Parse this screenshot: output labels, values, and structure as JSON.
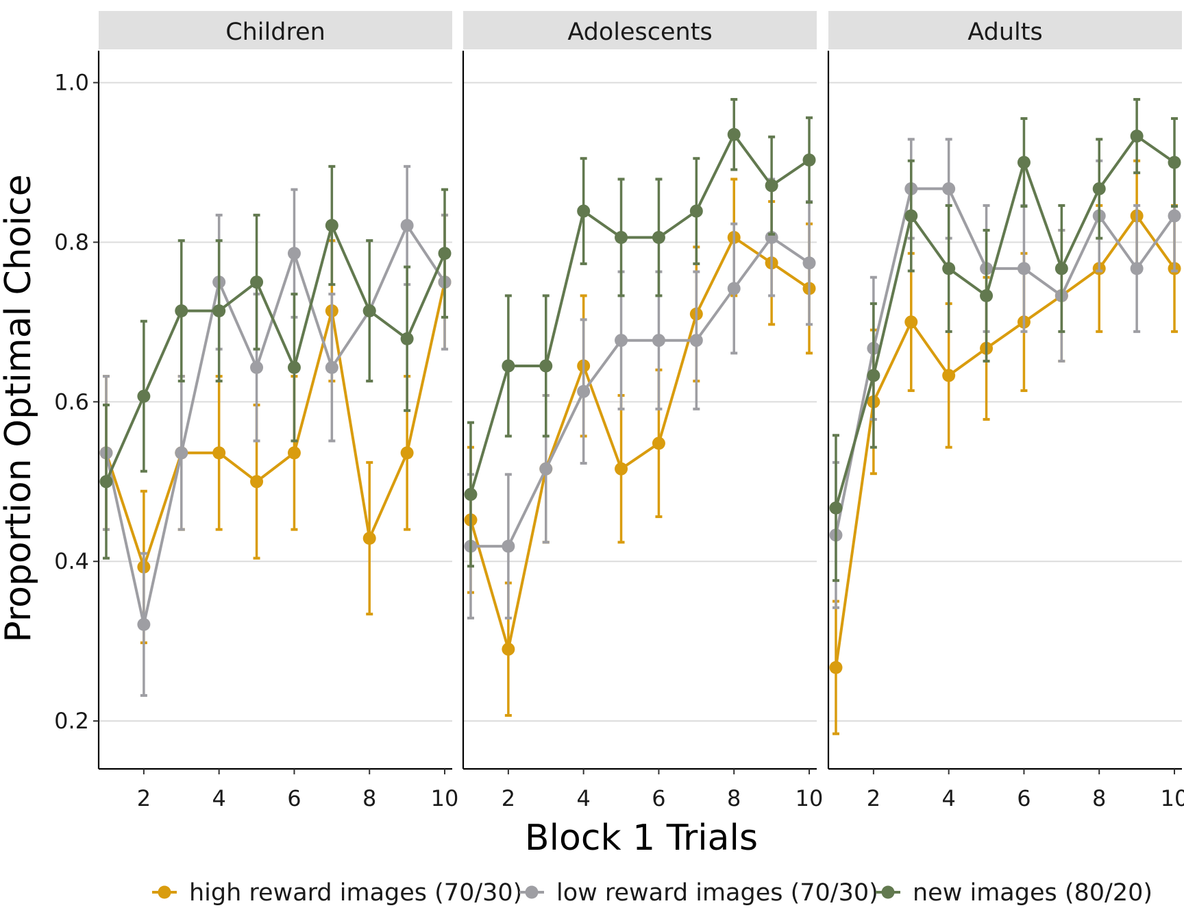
{
  "chart_data": {
    "type": "line",
    "facets": [
      "Children",
      "Adolescents",
      "Adults"
    ],
    "xlabel": "Block 1 Trials",
    "ylabel": "Proportion Optimal Choice",
    "xlim": [
      0.8,
      10.2
    ],
    "ylim": [
      0.14,
      1.04
    ],
    "x_ticks": [
      2,
      4,
      6,
      8,
      10
    ],
    "x_tick_labels": [
      "2",
      "4",
      "6",
      "8",
      "10"
    ],
    "y_ticks": [
      0.2,
      0.4,
      0.6,
      0.8,
      1.0
    ],
    "y_tick_labels": [
      "0.2",
      "0.4",
      "0.6",
      "0.8",
      "1.0"
    ],
    "grid": "horizontal major",
    "legend_position": "bottom",
    "x": [
      1,
      2,
      3,
      4,
      5,
      6,
      7,
      8,
      9,
      10
    ],
    "series": [
      {
        "name": "high reward images (70/30)",
        "color": "#d99c0e",
        "panels": [
          {
            "y": [
              0.536,
              0.393,
              0.536,
              0.536,
              0.5,
              0.536,
              0.714,
              0.429,
              0.536,
              0.75
            ],
            "ymin": [
              0.44,
              0.298,
              0.44,
              0.44,
              0.404,
              0.44,
              0.626,
              0.334,
              0.44,
              0.666
            ],
            "ymax": [
              0.632,
              0.488,
              0.632,
              0.632,
              0.596,
              0.632,
              0.802,
              0.524,
              0.632,
              0.834
            ]
          },
          {
            "y": [
              0.452,
              0.29,
              0.516,
              0.645,
              0.516,
              0.548,
              0.71,
              0.806,
              0.774,
              0.742
            ],
            "ymin": [
              0.361,
              0.207,
              0.424,
              0.557,
              0.424,
              0.456,
              0.626,
              0.733,
              0.697,
              0.661
            ],
            "ymax": [
              0.543,
              0.373,
              0.608,
              0.733,
              0.608,
              0.64,
              0.794,
              0.879,
              0.851,
              0.823
            ]
          },
          {
            "y": [
              0.267,
              0.6,
              0.7,
              0.633,
              0.667,
              0.7,
              0.733,
              0.767,
              0.833,
              0.767
            ],
            "ymin": [
              0.184,
              0.51,
              0.614,
              0.543,
              0.578,
              0.614,
              0.651,
              0.688,
              0.764,
              0.688
            ],
            "ymax": [
              0.35,
              0.69,
              0.786,
              0.723,
              0.756,
              0.786,
              0.815,
              0.846,
              0.902,
              0.846
            ]
          }
        ]
      },
      {
        "name": "low reward images (70/30)",
        "color": "#9e9ea3",
        "panels": [
          {
            "y": [
              0.536,
              0.321,
              0.536,
              0.75,
              0.643,
              0.786,
              0.643,
              0.714,
              0.821,
              0.75
            ],
            "ymin": [
              0.44,
              0.232,
              0.44,
              0.666,
              0.551,
              0.706,
              0.551,
              0.626,
              0.747,
              0.666
            ],
            "ymax": [
              0.632,
              0.41,
              0.632,
              0.834,
              0.735,
              0.866,
              0.735,
              0.802,
              0.895,
              0.834
            ]
          },
          {
            "y": [
              0.419,
              0.419,
              0.516,
              0.613,
              0.677,
              0.677,
              0.677,
              0.742,
              0.806,
              0.774
            ],
            "ymin": [
              0.329,
              0.329,
              0.424,
              0.523,
              0.591,
              0.591,
              0.591,
              0.661,
              0.733,
              0.697
            ],
            "ymax": [
              0.509,
              0.509,
              0.608,
              0.703,
              0.763,
              0.763,
              0.763,
              0.823,
              0.879,
              0.851
            ]
          },
          {
            "y": [
              0.433,
              0.667,
              0.867,
              0.867,
              0.767,
              0.767,
              0.733,
              0.833,
              0.767,
              0.833
            ],
            "ymin": [
              0.342,
              0.578,
              0.805,
              0.805,
              0.688,
              0.688,
              0.651,
              0.764,
              0.688,
              0.764
            ],
            "ymax": [
              0.524,
              0.756,
              0.929,
              0.929,
              0.846,
              0.846,
              0.815,
              0.902,
              0.846,
              0.902
            ]
          }
        ]
      },
      {
        "name": "new images (80/20)",
        "color": "#62794f",
        "panels": [
          {
            "y": [
              0.5,
              0.607,
              0.714,
              0.714,
              0.75,
              0.643,
              0.821,
              0.714,
              0.679,
              0.786
            ],
            "ymin": [
              0.404,
              0.513,
              0.626,
              0.626,
              0.666,
              0.551,
              0.747,
              0.626,
              0.589,
              0.706
            ],
            "ymax": [
              0.596,
              0.701,
              0.802,
              0.802,
              0.834,
              0.735,
              0.895,
              0.802,
              0.769,
              0.866
            ]
          },
          {
            "y": [
              0.484,
              0.645,
              0.645,
              0.839,
              0.806,
              0.806,
              0.839,
              0.935,
              0.871,
              0.903
            ],
            "ymin": [
              0.394,
              0.557,
              0.557,
              0.773,
              0.733,
              0.733,
              0.773,
              0.891,
              0.81,
              0.85
            ],
            "ymax": [
              0.574,
              0.733,
              0.733,
              0.905,
              0.879,
              0.879,
              0.905,
              0.979,
              0.932,
              0.956
            ]
          },
          {
            "y": [
              0.467,
              0.633,
              0.833,
              0.767,
              0.733,
              0.9,
              0.767,
              0.867,
              0.933,
              0.9
            ],
            "ymin": [
              0.376,
              0.543,
              0.764,
              0.688,
              0.651,
              0.845,
              0.688,
              0.805,
              0.887,
              0.845
            ],
            "ymax": [
              0.558,
              0.723,
              0.902,
              0.846,
              0.815,
              0.955,
              0.846,
              0.929,
              0.979,
              0.955
            ]
          }
        ]
      }
    ]
  }
}
